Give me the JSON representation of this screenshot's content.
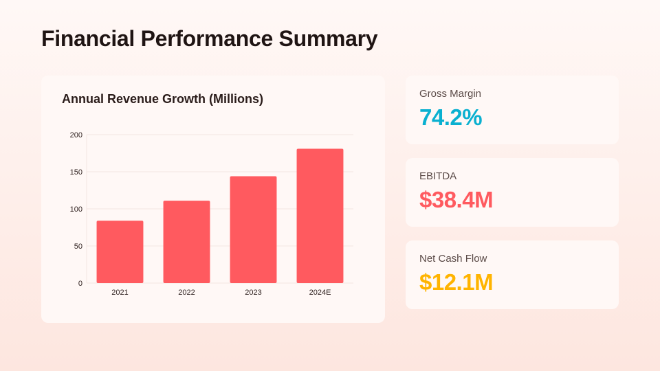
{
  "page": {
    "title": "Financial Performance Summary"
  },
  "chart_data": {
    "type": "bar",
    "title": "Annual Revenue Growth (Millions)",
    "xlabel": "",
    "ylabel": "",
    "categories": [
      "2021",
      "2022",
      "2023",
      "2024E"
    ],
    "values": [
      84,
      111,
      144,
      181
    ],
    "ylim": [
      0,
      200
    ],
    "yticks": [
      "0",
      "50",
      "100",
      "150",
      "200"
    ],
    "bar_color": "#ff5a5f",
    "grid": true,
    "legend": "none"
  },
  "metrics": [
    {
      "label": "Gross Margin",
      "value": "74.2%",
      "color": "#0ab0d0"
    },
    {
      "label": "EBITDA",
      "value": "$38.4M",
      "color": "#ff5a5f"
    },
    {
      "label": "Net Cash Flow",
      "value": "$12.1M",
      "color": "#ffb400"
    }
  ]
}
